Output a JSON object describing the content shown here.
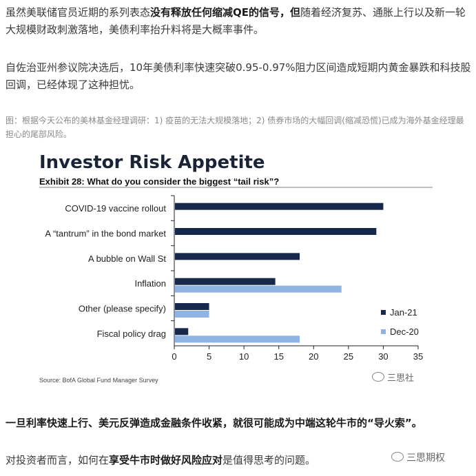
{
  "article": {
    "p1_a": "虽然美联储官员近期的系列表态",
    "p1_b": "没有释放任何缩减QE的信号，但",
    "p1_c": "随着经济复苏、通胀上行以及新一轮大规模财政刺激落地，美债利率抬升料将是大概率事件。",
    "p2": "自佐治亚州参议院决选后，10年美债利率快速突破0.95-0.97%阻力区间造成短期内黄金暴跌和科技股回调，已经体现了这种担忧。",
    "caption": "图：根据今天公布的美林基金经理调研：1) 疫苗的无法大规模落地；2) 债券市场的大幅回调(缩减恐慌)已成为海外基金经理最担心的尾部风险。",
    "p3": "一旦利率快速上行、美元反弹造成金融条件收紧，就很可能成为中端这轮牛市的“导火索”。",
    "p4_a": "对投资者而言，如何在",
    "p4_b": "享受牛市时做好风险应对",
    "p4_c": "是值得思考的问题。"
  },
  "watermarks": {
    "wm1": "三思社",
    "wm2": "三思期权"
  },
  "chart_data": {
    "type": "bar",
    "orientation": "horizontal",
    "title": "Investor Risk Appetite",
    "subtitle": "Exhibit 28: What do you consider the biggest “tail risk”?",
    "categories": [
      "COVID-19 vaccine rollout",
      "A “tantrum” in the bond market",
      "A bubble on Wall St",
      "Inflation",
      "Other (please specify)",
      "Fiscal policy drag"
    ],
    "series": [
      {
        "name": "Jan-21",
        "color": "#17294a",
        "values": [
          30,
          29,
          18,
          14.5,
          5,
          2
        ]
      },
      {
        "name": "Dec-20",
        "color": "#8fb3e3",
        "values": [
          null,
          null,
          null,
          24,
          5,
          18
        ]
      }
    ],
    "xlim": [
      0,
      35
    ],
    "xticks": [
      0,
      5,
      10,
      15,
      20,
      25,
      30,
      35
    ],
    "legend_position": "bottom-right",
    "source": "Source: BofA Global Fund Manager Survey"
  }
}
